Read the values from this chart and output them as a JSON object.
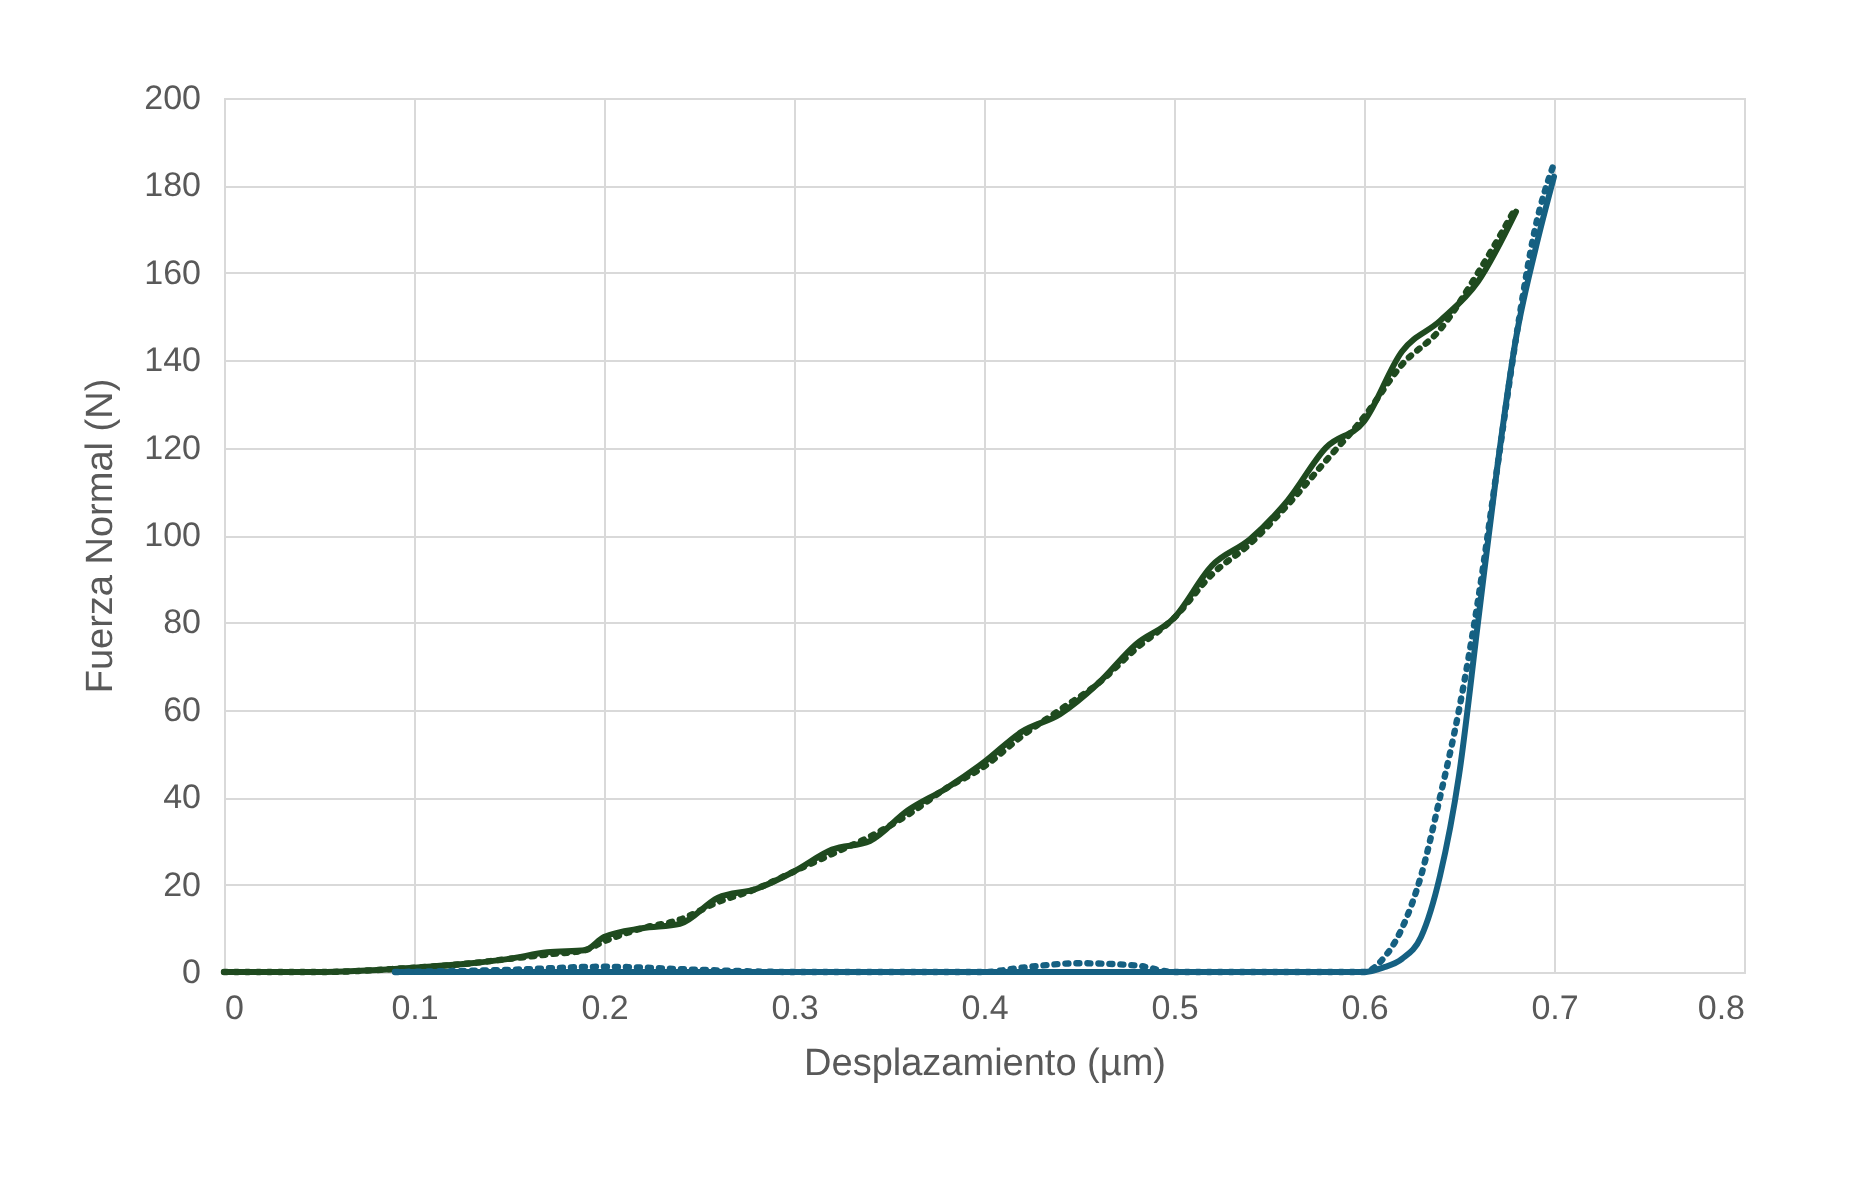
{
  "chart_data": {
    "type": "line",
    "xlabel": "Desplazamiento (µm)",
    "ylabel": "Fuerza Normal (N)",
    "xlim": [
      0,
      0.8
    ],
    "xticks": [
      0,
      0.1,
      0.2,
      0.3,
      0.4,
      0.5,
      0.6,
      0.7,
      0.8
    ],
    "ylim": [
      0,
      200
    ],
    "yticks": [
      0,
      20,
      40,
      60,
      80,
      100,
      120,
      140,
      160,
      180,
      200
    ],
    "grid": true,
    "marker": "none",
    "series": [
      {
        "color": "#1f4a1f",
        "line_style": "solid",
        "x": [
          0,
          0.05,
          0.1,
          0.13,
          0.15,
          0.17,
          0.19,
          0.2,
          0.22,
          0.24,
          0.26,
          0.28,
          0.3,
          0.32,
          0.34,
          0.36,
          0.38,
          0.4,
          0.42,
          0.44,
          0.46,
          0.48,
          0.5,
          0.52,
          0.54,
          0.56,
          0.58,
          0.6,
          0.62,
          0.64,
          0.66,
          0.68
        ],
        "values": [
          0,
          0,
          1,
          2,
          3,
          4.5,
          5,
          8,
          10,
          11,
          17,
          19,
          23,
          28,
          30,
          37,
          42,
          48,
          55,
          59,
          66,
          75,
          81,
          93,
          99,
          108,
          120,
          126,
          142,
          149,
          158,
          174
        ]
      },
      {
        "color": "#1f4a1f",
        "line_style": "dotted",
        "x": [
          0,
          0.05,
          0.1,
          0.13,
          0.15,
          0.17,
          0.19,
          0.2,
          0.22,
          0.24,
          0.26,
          0.28,
          0.3,
          0.32,
          0.34,
          0.36,
          0.38,
          0.4,
          0.42,
          0.44,
          0.46,
          0.48,
          0.5,
          0.52,
          0.54,
          0.56,
          0.58,
          0.6,
          0.62,
          0.64,
          0.66,
          0.68
        ],
        "values": [
          0,
          0,
          1,
          2,
          3,
          4,
          5,
          7,
          10,
          12,
          16,
          19,
          23,
          27,
          31,
          36,
          42,
          47,
          54,
          60,
          66,
          74,
          81,
          91,
          98,
          107,
          117,
          127,
          139,
          147,
          160,
          175
        ]
      },
      {
        "color": "#156082",
        "line_style": "solid",
        "x": [
          0.09,
          0.3,
          0.5,
          0.58,
          0.6,
          0.61,
          0.62,
          0.63,
          0.64,
          0.65,
          0.66,
          0.67,
          0.68,
          0.69,
          0.7
        ],
        "values": [
          0,
          0,
          0,
          0,
          0,
          1,
          3,
          8,
          22,
          45,
          80,
          115,
          145,
          165,
          182
        ]
      },
      {
        "color": "#156082",
        "line_style": "dotted",
        "x": [
          0.09,
          0.15,
          0.2,
          0.25,
          0.3,
          0.4,
          0.42,
          0.45,
          0.48,
          0.5,
          0.6,
          0.61,
          0.62,
          0.63,
          0.64,
          0.65,
          0.66,
          0.67,
          0.68,
          0.69,
          0.7
        ],
        "values": [
          0,
          0.5,
          1.2,
          0.5,
          0,
          0,
          1,
          2,
          1.5,
          0,
          0,
          3,
          10,
          22,
          40,
          60,
          85,
          115,
          145,
          170,
          185
        ]
      }
    ]
  }
}
